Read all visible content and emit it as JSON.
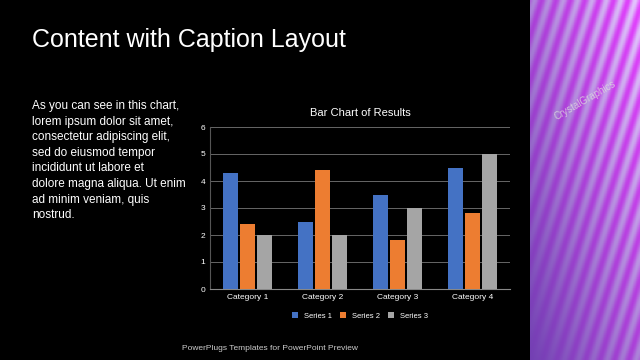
{
  "slide": {
    "title": "Content with Caption Layout",
    "caption": "As you can see in this chart, lorem ipsum dolor sit amet, consectetur adipiscing elit, sed do eiusmod tempor incididunt ut labore et dolore magna aliqua. Ut enim ad minim veniam, quis nostrud.",
    "footer": "PowerPlugs Templates for PowerPoint Preview",
    "watermark": "CrystalGraphics"
  },
  "chart_data": {
    "type": "bar",
    "title": "Bar Chart of Results",
    "categories": [
      "Category 1",
      "Category 2",
      "Category 3",
      "Category 4"
    ],
    "series": [
      {
        "name": "Series 1",
        "color": "#4472c4",
        "values": [
          4.3,
          2.5,
          3.5,
          4.5
        ]
      },
      {
        "name": "Series 2",
        "color": "#ed7d31",
        "values": [
          2.4,
          4.4,
          1.8,
          2.8
        ]
      },
      {
        "name": "Series 3",
        "color": "#a5a5a5",
        "values": [
          2,
          2,
          3,
          5
        ]
      }
    ],
    "ylim": [
      0,
      6
    ],
    "yticks": [
      0,
      1,
      2,
      3,
      4,
      5,
      6
    ],
    "grid": true,
    "legend": "bottom"
  }
}
